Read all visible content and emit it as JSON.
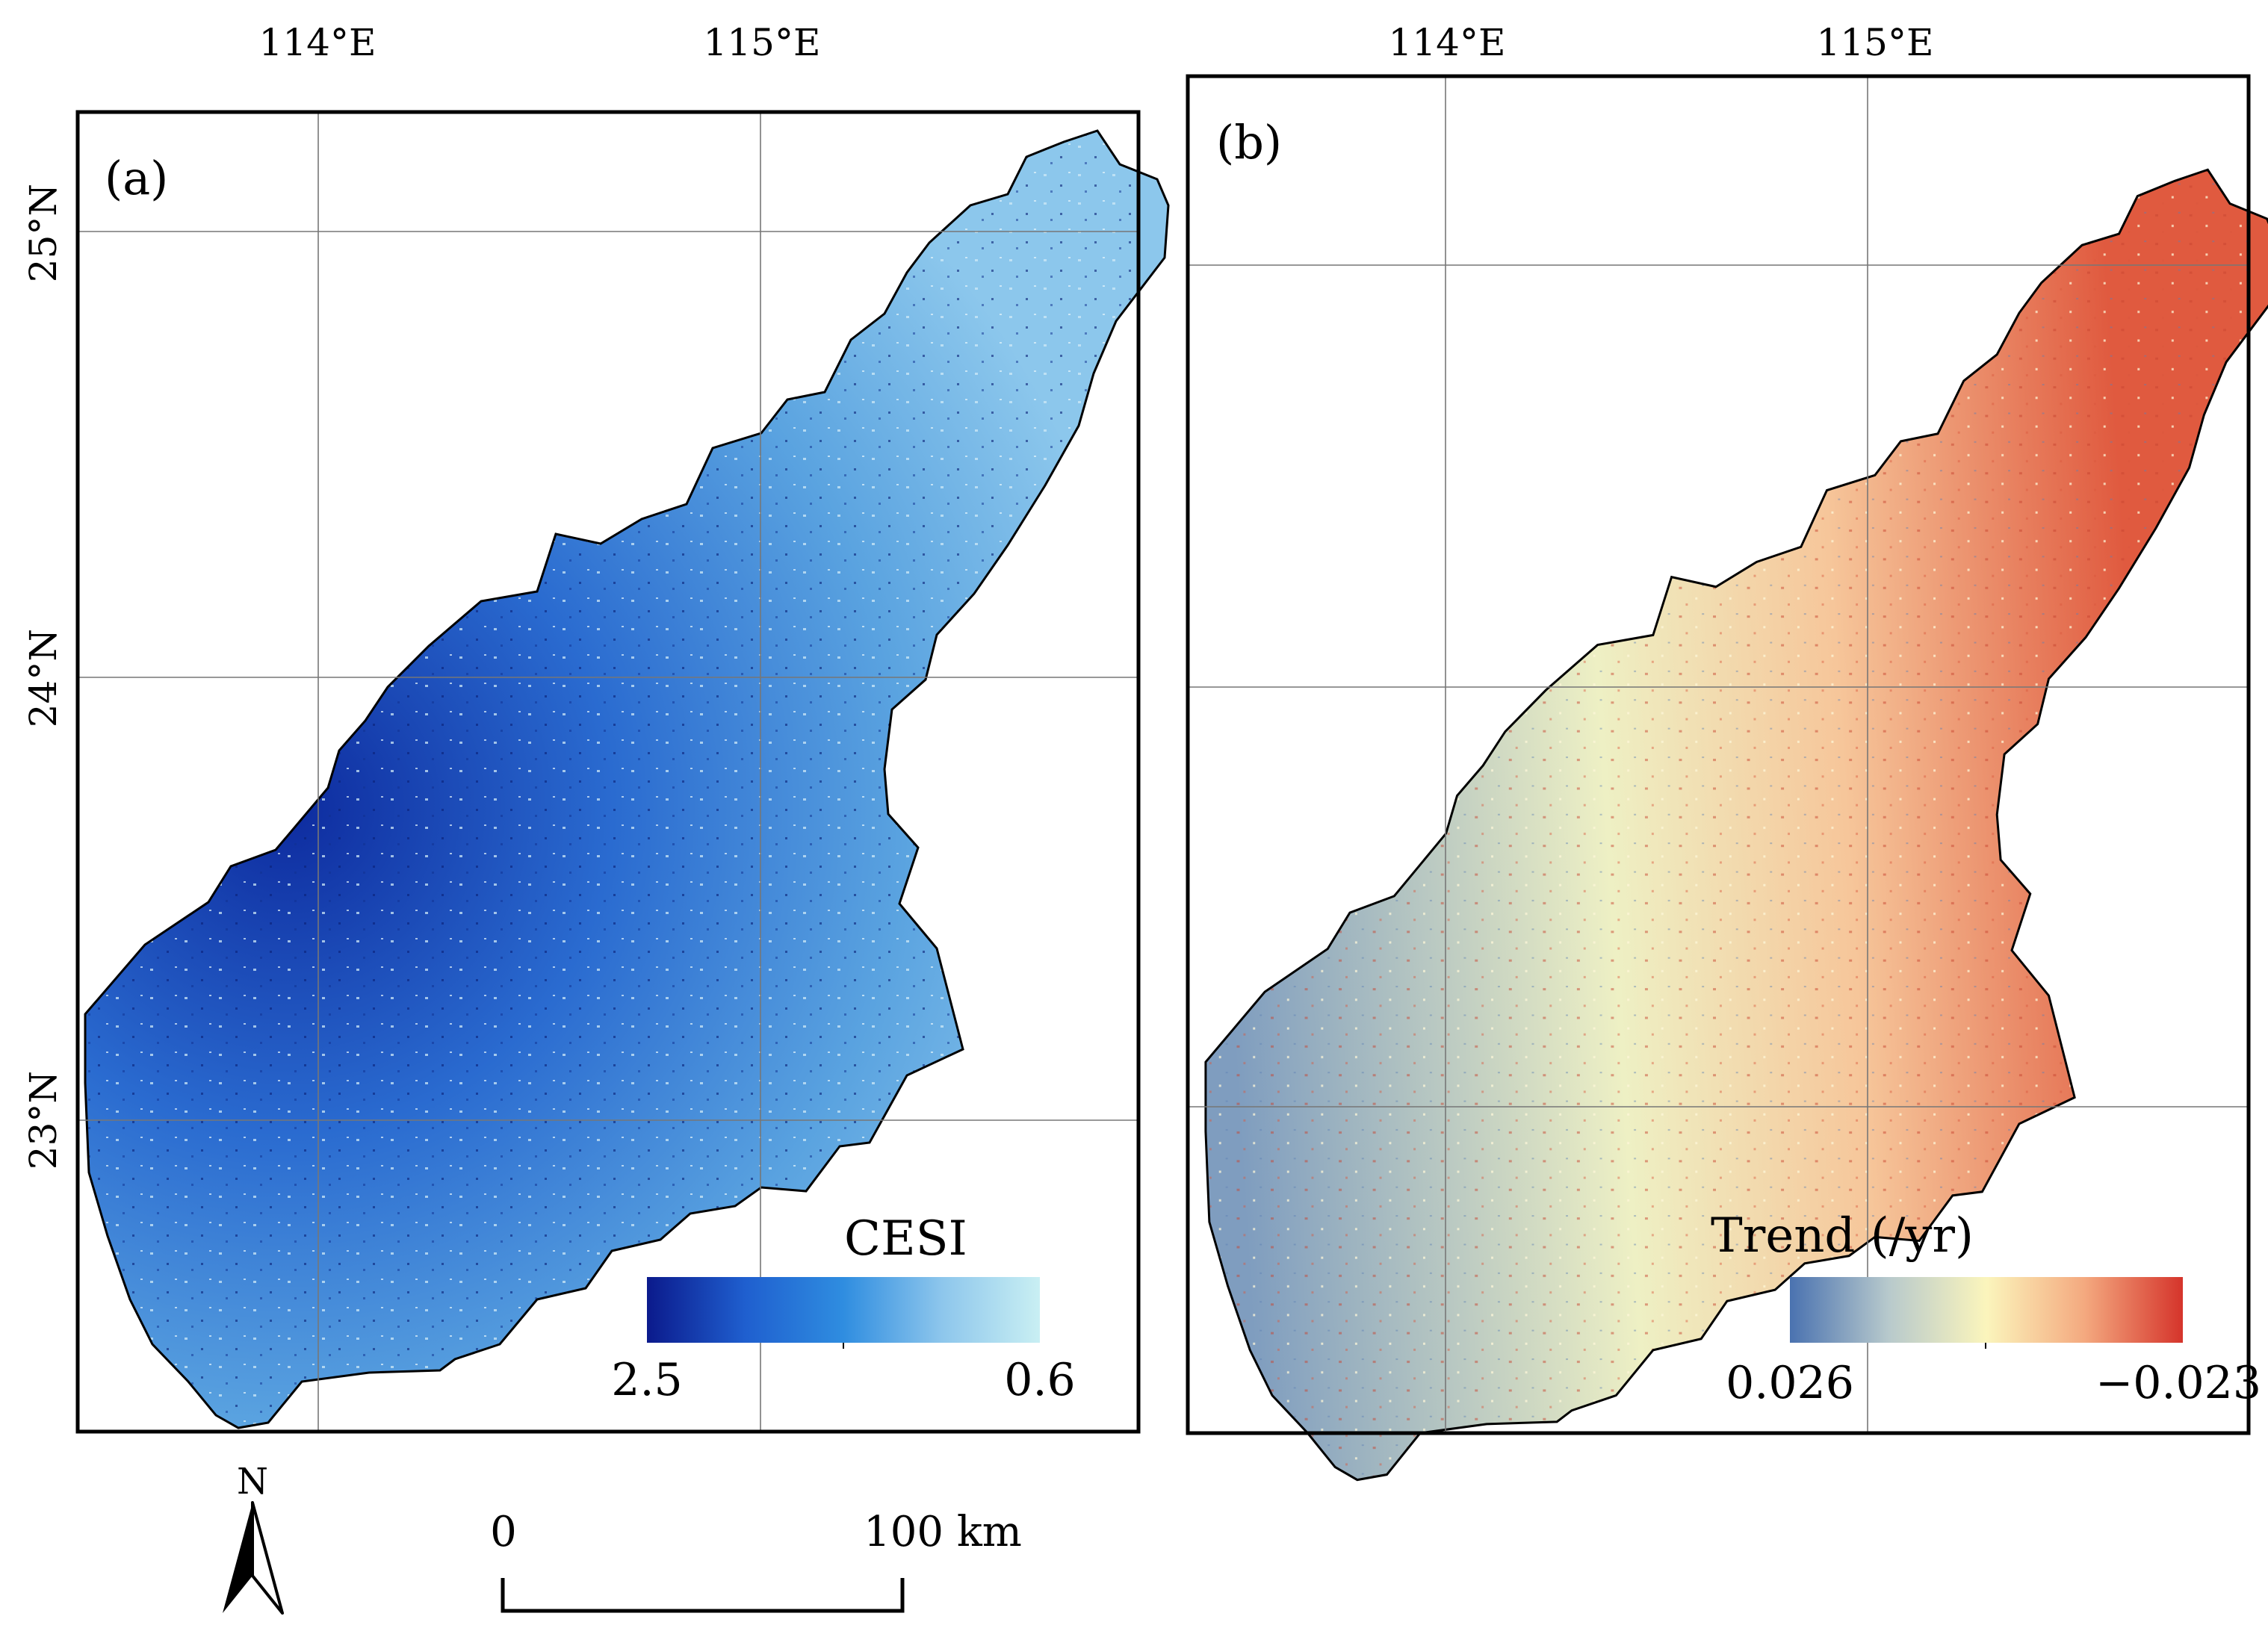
{
  "panels": [
    {
      "id": "a",
      "label": "(a)",
      "lon_labels": [
        "114°E",
        "115°E"
      ],
      "lat_labels": [
        "25°N",
        "24°N",
        "23°N"
      ],
      "legend": {
        "title": "CESI",
        "min_label": "2.5",
        "max_label": "0.6",
        "colors": [
          "#0b1a8c",
          "#1f5fcf",
          "#2f8de0",
          "#8dc6ec",
          "#c9eff3"
        ]
      },
      "fill": {
        "colors": [
          "#0d2a9e",
          "#2a6bd0",
          "#5aa3e0",
          "#8cc7ec"
        ]
      }
    },
    {
      "id": "b",
      "label": "(b)",
      "lon_labels": [
        "114°E",
        "115°E"
      ],
      "lat_labels": [],
      "legend": {
        "title": "Trend (/yr)",
        "min_label": "0.026",
        "max_label": "−0.023",
        "colors": [
          "#4a72b0",
          "#b7c9cc",
          "#fbf5bc",
          "#f4a97f",
          "#d5342b"
        ]
      },
      "fill": {
        "colors": [
          "#7f9dbf",
          "#eef0c4",
          "#f6c69a",
          "#e05a3f"
        ]
      }
    }
  ],
  "north_arrow": {
    "label": "N"
  },
  "scale_bar": {
    "start_label": "0",
    "end_label": "100 km"
  }
}
